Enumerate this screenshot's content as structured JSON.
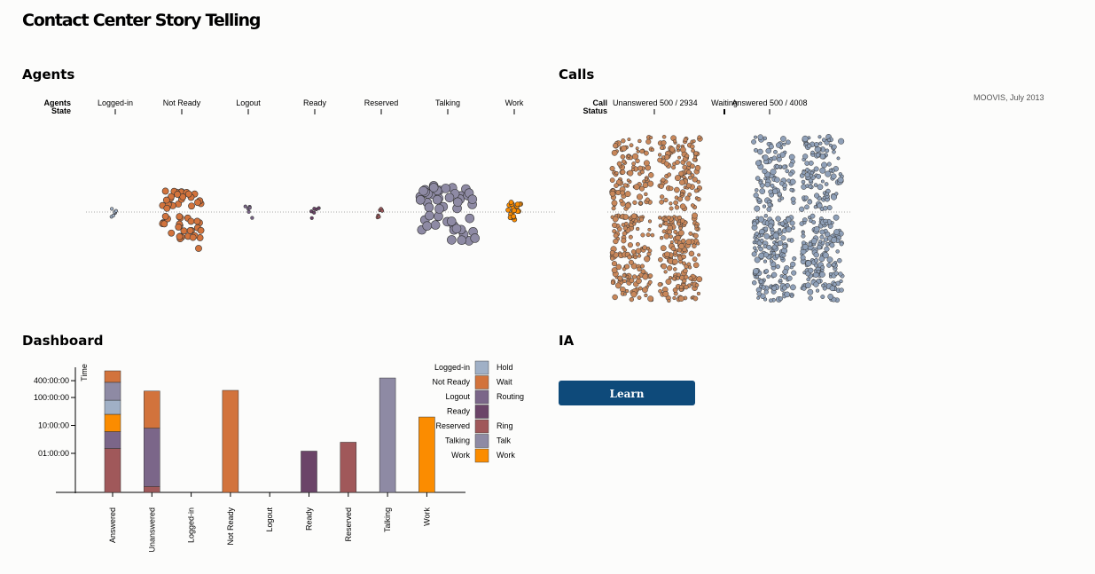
{
  "title": "Contact Center Story Telling",
  "credit": "MOOVIS, July 2013",
  "sections": {
    "agents": "Agents",
    "calls": "Calls",
    "dashboard": "Dashboard",
    "ia": "IA"
  },
  "learn_label": "Learn",
  "agents": {
    "axis_label": [
      "Agents",
      "State"
    ],
    "states": [
      "Logged-in",
      "Not Ready",
      "Logout",
      "Ready",
      "Reserved",
      "Talking",
      "Work"
    ],
    "colors": [
      "#a0b0c6",
      "#d2733c",
      "#7b6689",
      "#6b4468",
      "#a0585a",
      "#8e8aa4",
      "#fb8c00"
    ]
  },
  "calls": {
    "axis_label": [
      "Call",
      "Status"
    ],
    "statuses": [
      "Unanswered 500 / 2934",
      "Waiting",
      "Answered 500 / 4008"
    ],
    "colors": {
      "unanswered": "#c8875a",
      "answered": "#8fa0b8"
    }
  },
  "legend": {
    "left": [
      "Logged-in",
      "Not Ready",
      "Logout",
      "Ready",
      "Reserved",
      "Talking",
      "Work"
    ],
    "right": [
      "Hold",
      "Wait",
      "Routing",
      "",
      "Ring",
      "Talk",
      "Work"
    ],
    "colors": [
      "#a0b0c6",
      "#d2733c",
      "#7b6689",
      "#6b4468",
      "#a0585a",
      "#8e8aa4",
      "#fb8c00"
    ]
  },
  "chart_data": {
    "type": "bar",
    "ylabel": "Time",
    "yticks": [
      "400:00:00",
      "100:00:00",
      "10:00:00",
      "01:00:00"
    ],
    "categories": [
      "Answered",
      "Unanswered",
      "Logged-in",
      "Not Ready",
      "Logout",
      "Ready",
      "Reserved",
      "Talking",
      "Work"
    ],
    "stacks": [
      [
        {
          "component": "Ring",
          "top": 1.5
        },
        {
          "component": "Routing",
          "top": 6
        },
        {
          "component": "Work",
          "top": 25
        },
        {
          "component": "Hold",
          "top": 80
        },
        {
          "component": "Talk",
          "top": 350
        },
        {
          "component": "Wait",
          "top": 900
        }
      ],
      [
        {
          "component": "Ring",
          "top": 0.065
        },
        {
          "component": "Routing",
          "top": 8
        },
        {
          "component": "Wait",
          "top": 170
        }
      ],
      [],
      [
        {
          "component": "Wait",
          "top": 180
        }
      ],
      [],
      [
        {
          "component": "Ready",
          "top": 1.2
        }
      ],
      [
        {
          "component": "Reserved",
          "top": 2.5
        }
      ],
      [
        {
          "component": "Talking",
          "top": 500
        }
      ],
      [
        {
          "component": "Work",
          "top": 20
        }
      ]
    ]
  }
}
